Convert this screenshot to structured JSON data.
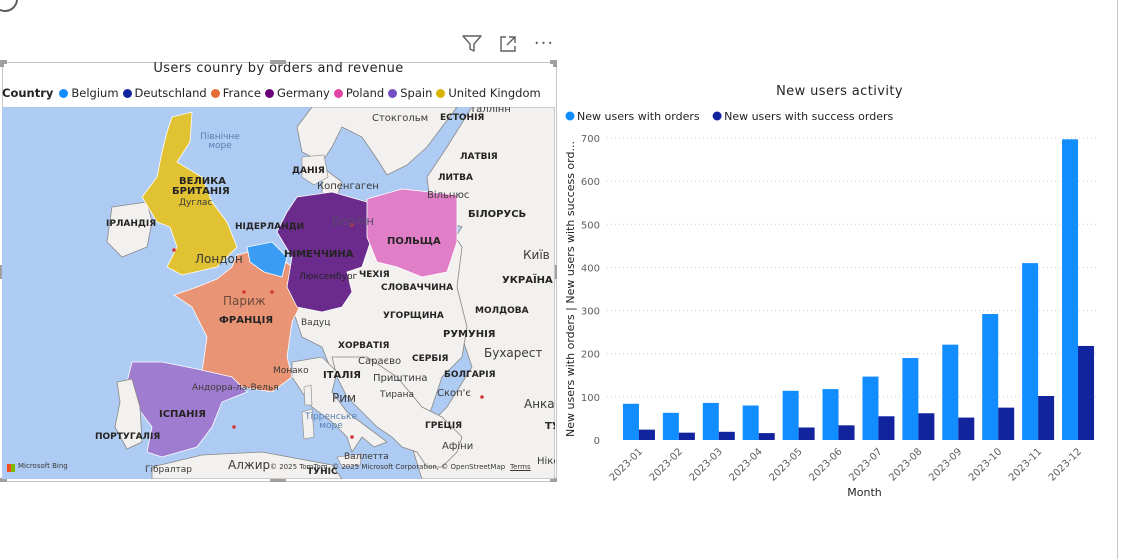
{
  "toolbar": {
    "icons": [
      "filter-icon",
      "focus-mode-icon",
      "more-options-icon"
    ],
    "more_glyph": "···"
  },
  "map_visual": {
    "title": "Users counry by orders and revenue",
    "legend_title": "Country",
    "legend": [
      {
        "name": "Belgium",
        "color": "#118dff"
      },
      {
        "name": "Deutschland",
        "color": "#12239e"
      },
      {
        "name": "France",
        "color": "#e66c37"
      },
      {
        "name": "Germany",
        "color": "#6b007b"
      },
      {
        "name": "Poland",
        "color": "#e044a7"
      },
      {
        "name": "Spain",
        "color": "#744ec2"
      },
      {
        "name": "United Kingdom",
        "color": "#d9b300"
      }
    ],
    "labels": {
      "north_sea": "Північне\nморе",
      "denmark": "ДАНІЯ",
      "stockholm": "Стокгольм",
      "estonia": "ЕСТОНІЯ",
      "tallinn": "Таллінн",
      "latvia": "ЛАТВІЯ",
      "lithuania": "ЛИТВА",
      "vilnius": "Вільнюс",
      "copenhagen": "Копенгаген",
      "belarus": "БІЛОРУСЬ",
      "kyiv": "Київ",
      "ukraine": "УКРАЇНА",
      "moldova": "МОЛДОВА",
      "romania": "РУМУНІЯ",
      "bucharest": "Бухарест",
      "bulgaria": "БОЛГАРІЯ",
      "serbia": "СЕРБІЯ",
      "skopje": "Скоп'є",
      "greece": "ГРЕЦІЯ",
      "athens": "Афіни",
      "ankara": "Анка",
      "tu": "ТУ",
      "great_britain_1": "ВЕЛИКА",
      "great_britain_2": "БРИТАНІЯ",
      "douglas": "Дуглас",
      "ireland": "ІРЛАНДІЯ",
      "london": "Лондон",
      "netherlands": "НІДЕРЛАНДИ",
      "germany": "НІМЕЧЧИНА",
      "berlin": "Берлін",
      "luxembourg": "Люксембург",
      "poland": "ПОЛЬЩА",
      "czechia": "ЧЕХІЯ",
      "slovakia": "СЛОВАЧЧИНА",
      "hungary": "УГОРЩИНА",
      "paris": "Париж",
      "france": "ФРАНЦІЯ",
      "vaduz": "Вадуц",
      "croatia": "ХОРВАТІЯ",
      "sarajevo": "Сараєво",
      "pristina": "Приштина",
      "tirana": "Тирана",
      "monaco": "Монако",
      "italy": "ІТАЛІЯ",
      "rome": "Рим",
      "tyrrhenian": "Тірренське\nморе",
      "andorra": "Андорра-ла-Велья",
      "spain": "ІСПАНІЯ",
      "portugal": "ПОРТУГАЛІЯ",
      "valletta": "Валлетта",
      "gibraltar": "Гібралтар",
      "algiers": "Алжир",
      "tunisia": "ТУНІС",
      "bing": "Microsoft Bing",
      "copyright": "© 2025 TomTom, © 2025 Microsoft Corporation, © OpenStreetMap",
      "terms": "Terms",
      "nicosia": "Нікс"
    }
  },
  "chart_data": {
    "type": "bar",
    "title": "New users activity",
    "xlabel": "Month",
    "ylabel": "New users with orders | New users with success ord...",
    "categories": [
      "2023-01",
      "2023-02",
      "2023-03",
      "2023-04",
      "2023-05",
      "2023-06",
      "2023-07",
      "2023-08",
      "2023-09",
      "2023-10",
      "2023-11",
      "2023-12"
    ],
    "series": [
      {
        "name": "New users with orders",
        "color": "#118dff",
        "values": [
          84,
          63,
          86,
          80,
          114,
          118,
          147,
          190,
          221,
          292,
          410,
          697
        ]
      },
      {
        "name": "New users with success orders",
        "color": "#12239e",
        "values": [
          24,
          17,
          19,
          16,
          29,
          34,
          55,
          62,
          52,
          75,
          102,
          218
        ]
      }
    ],
    "ylim": [
      0,
      700
    ],
    "yticks": [
      0,
      100,
      200,
      300,
      400,
      500,
      600,
      700
    ],
    "grid": true,
    "legend_position": "top-left"
  }
}
